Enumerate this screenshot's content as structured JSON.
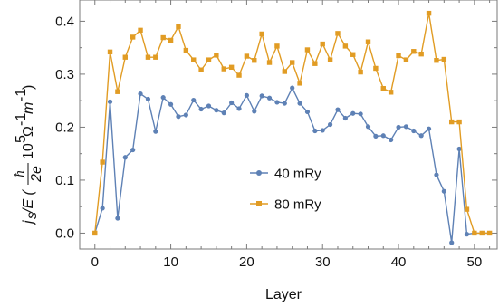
{
  "chart_data": {
    "type": "line",
    "title": "",
    "xlabel": "Layer",
    "ylabel": {
      "main": "j",
      "main_sub": "s",
      "slash_e": "/E (",
      "frac_num": "ħ",
      "frac_den": "2e",
      "ten": "10",
      "ten_exp": "5",
      "unit1": "Ω",
      "unit1_exp": "-1",
      "unit2": "m",
      "unit2_exp": "-1",
      "close": ")"
    },
    "xlim": [
      -2,
      53
    ],
    "ylim": [
      -0.03,
      0.44
    ],
    "x_ticks": [
      0,
      10,
      20,
      30,
      40,
      50
    ],
    "y_ticks": [
      0.0,
      0.1,
      0.2,
      0.3,
      0.4
    ],
    "y_tick_labels": [
      "0.0",
      "0.1",
      "0.2",
      "0.3",
      "0.4"
    ],
    "grid": false,
    "legend_position": "center-left inside plot",
    "series": [
      {
        "name": "40 mRy",
        "color": "#5e81b5",
        "marker": "circle",
        "x": [
          0,
          1,
          2,
          3,
          4,
          5,
          6,
          7,
          8,
          9,
          10,
          11,
          12,
          13,
          14,
          15,
          16,
          17,
          18,
          19,
          20,
          21,
          22,
          23,
          24,
          25,
          26,
          27,
          28,
          29,
          30,
          31,
          32,
          33,
          34,
          35,
          36,
          37,
          38,
          39,
          40,
          41,
          42,
          43,
          44,
          45,
          46,
          47,
          48,
          49,
          50,
          51,
          52
        ],
        "values": [
          0.0,
          0.047,
          0.248,
          0.028,
          0.143,
          0.157,
          0.263,
          0.253,
          0.192,
          0.256,
          0.243,
          0.22,
          0.223,
          0.251,
          0.234,
          0.24,
          0.232,
          0.227,
          0.246,
          0.235,
          0.26,
          0.23,
          0.259,
          0.255,
          0.247,
          0.245,
          0.274,
          0.245,
          0.229,
          0.193,
          0.194,
          0.205,
          0.233,
          0.217,
          0.226,
          0.225,
          0.201,
          0.183,
          0.184,
          0.176,
          0.2,
          0.201,
          0.193,
          0.184,
          0.197,
          0.11,
          0.079,
          -0.018,
          0.159,
          -0.002,
          0.0,
          0.0,
          0.0
        ]
      },
      {
        "name": "80 mRy",
        "color": "#e19c24",
        "marker": "square",
        "x": [
          0,
          1,
          2,
          3,
          4,
          5,
          6,
          7,
          8,
          9,
          10,
          11,
          12,
          13,
          14,
          15,
          16,
          17,
          18,
          19,
          20,
          21,
          22,
          23,
          24,
          25,
          26,
          27,
          28,
          29,
          30,
          31,
          32,
          33,
          34,
          35,
          36,
          37,
          38,
          39,
          40,
          41,
          42,
          43,
          44,
          45,
          46,
          47,
          48,
          49,
          50,
          51,
          52
        ],
        "values": [
          0.0,
          0.134,
          0.342,
          0.267,
          0.332,
          0.37,
          0.383,
          0.332,
          0.332,
          0.369,
          0.364,
          0.39,
          0.345,
          0.327,
          0.308,
          0.327,
          0.336,
          0.31,
          0.313,
          0.298,
          0.334,
          0.326,
          0.376,
          0.322,
          0.353,
          0.305,
          0.322,
          0.283,
          0.346,
          0.32,
          0.357,
          0.327,
          0.377,
          0.353,
          0.337,
          0.304,
          0.361,
          0.311,
          0.273,
          0.266,
          0.335,
          0.327,
          0.343,
          0.338,
          0.415,
          0.326,
          0.328,
          0.21,
          0.21,
          0.045,
          0.0,
          0.0,
          0.0
        ]
      }
    ]
  }
}
